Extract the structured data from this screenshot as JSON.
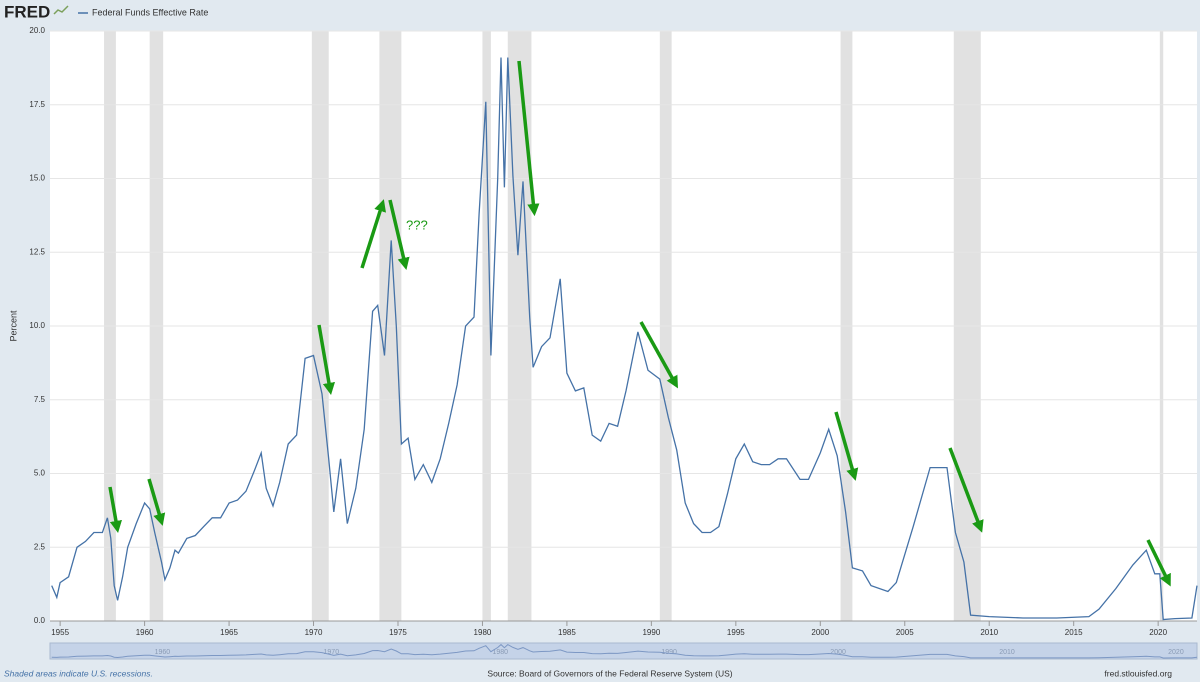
{
  "logo": "FRED",
  "chart_data": {
    "type": "line",
    "y_label": "Percent",
    "x": [
      1954.5,
      1954.8,
      1955,
      1955.5,
      1956,
      1956.5,
      1957,
      1957.5,
      1957.8,
      1958.0,
      1958.2,
      1958.4,
      1958.7,
      1959,
      1959.5,
      1960,
      1960.3,
      1960.6,
      1961,
      1961.2,
      1961.5,
      1961.8,
      1962,
      1962.5,
      1963,
      1963.5,
      1964,
      1964.5,
      1965,
      1965.5,
      1966,
      1966.5,
      1966.9,
      1967.2,
      1967.6,
      1968,
      1968.5,
      1969,
      1969.5,
      1970,
      1970.5,
      1970.9,
      1971.2,
      1971.6,
      1972.0,
      1972.5,
      1973,
      1973.5,
      1973.8,
      1974.2,
      1974.6,
      1974.9,
      1975.2,
      1975.6,
      1976,
      1976.5,
      1977,
      1977.5,
      1978,
      1978.5,
      1979,
      1979.5,
      1979.8,
      1980.2,
      1980.5,
      1980.9,
      1981.1,
      1981.3,
      1981.5,
      1981.8,
      1982.1,
      1982.4,
      1982.8,
      1983,
      1983.5,
      1984,
      1984.6,
      1985,
      1985.5,
      1986,
      1986.5,
      1987,
      1987.5,
      1988,
      1988.5,
      1989.2,
      1989.8,
      1990.5,
      1991,
      1991.5,
      1992,
      1992.5,
      1993,
      1993.5,
      1994,
      1994.5,
      1995,
      1995.5,
      1996,
      1996.5,
      1997,
      1997.5,
      1998,
      1998.8,
      1999.3,
      2000,
      2000.5,
      2001,
      2001.5,
      2001.9,
      2002.5,
      2003,
      2004,
      2004.5,
      2005.5,
      2006.5,
      2007.5,
      2008,
      2008.5,
      2008.9,
      2010,
      2012,
      2014,
      2015.9,
      2016.5,
      2017.5,
      2018.5,
      2019.3,
      2019.8,
      2020.1,
      2020.3,
      2021,
      2022,
      2022.3
    ],
    "series": [
      {
        "name": "Federal Funds Effective Rate",
        "color": "#4572a7",
        "values": [
          1.2,
          0.8,
          1.3,
          1.5,
          2.5,
          2.7,
          3.0,
          3.0,
          3.5,
          2.8,
          1.2,
          0.7,
          1.5,
          2.5,
          3.3,
          4.0,
          3.8,
          3.0,
          2.0,
          1.4,
          1.8,
          2.4,
          2.3,
          2.8,
          2.9,
          3.2,
          3.5,
          3.5,
          4.0,
          4.1,
          4.4,
          5.1,
          5.7,
          4.5,
          3.9,
          4.7,
          6.0,
          6.3,
          8.9,
          9.0,
          7.7,
          5.5,
          3.7,
          5.5,
          3.3,
          4.5,
          6.5,
          10.5,
          10.7,
          9.0,
          12.9,
          10.0,
          6.0,
          6.2,
          4.8,
          5.3,
          4.7,
          5.5,
          6.7,
          8.0,
          10.0,
          10.3,
          13.8,
          17.6,
          9.0,
          15.0,
          19.1,
          14.7,
          19.1,
          15.1,
          12.4,
          14.9,
          10.3,
          8.6,
          9.3,
          9.6,
          11.6,
          8.4,
          7.8,
          7.9,
          6.3,
          6.1,
          6.7,
          6.6,
          7.8,
          9.8,
          8.5,
          8.2,
          6.9,
          5.8,
          4.0,
          3.3,
          3.0,
          3.0,
          3.2,
          4.3,
          5.5,
          6.0,
          5.4,
          5.3,
          5.3,
          5.5,
          5.5,
          4.8,
          4.8,
          5.7,
          6.5,
          5.6,
          3.7,
          1.8,
          1.7,
          1.2,
          1.0,
          1.3,
          3.2,
          5.2,
          5.2,
          3.0,
          2.0,
          0.2,
          0.15,
          0.1,
          0.1,
          0.15,
          0.4,
          1.1,
          1.9,
          2.4,
          1.6,
          1.6,
          0.05,
          0.08,
          0.1,
          1.2
        ]
      }
    ],
    "recessions": [
      [
        1957.6,
        1958.3
      ],
      [
        1960.3,
        1961.1
      ],
      [
        1969.9,
        1970.9
      ],
      [
        1973.9,
        1975.2
      ],
      [
        1980.0,
        1980.5
      ],
      [
        1981.5,
        1982.9
      ],
      [
        1990.5,
        1991.2
      ],
      [
        2001.2,
        2001.9
      ],
      [
        2007.9,
        2009.5
      ],
      [
        2020.1,
        2020.3
      ]
    ],
    "xlim": [
      1954.4,
      2022.3
    ],
    "xticks": [
      1955,
      1960,
      1965,
      1970,
      1975,
      1980,
      1985,
      1990,
      1995,
      2000,
      2005,
      2010,
      2015,
      2020
    ],
    "ylim": [
      0,
      20
    ],
    "yticks": [
      {
        "value": 0,
        "label": "0.0"
      },
      {
        "value": 2.5,
        "label": "2.5"
      },
      {
        "value": 5,
        "label": "5.0"
      },
      {
        "value": 7.5,
        "label": "7.5"
      },
      {
        "value": 10,
        "label": "10.0"
      },
      {
        "value": 12.5,
        "label": "12.5"
      },
      {
        "value": 15,
        "label": "15.0"
      },
      {
        "value": 17.5,
        "label": "17.5"
      },
      {
        "value": 20,
        "label": "20.0"
      }
    ],
    "grid": true,
    "annotation": "???",
    "note": "Shaded areas indicate U.S. recessions.",
    "source": "Source: Board of Governors of the Federal Reserve System (US)",
    "url": "fred.stlouisfed.org"
  }
}
